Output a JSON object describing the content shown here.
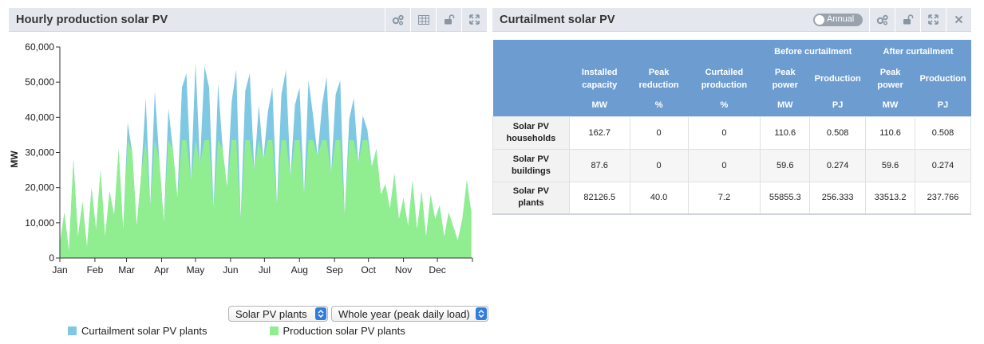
{
  "left_panel": {
    "title": "Hourly production solar PV",
    "tools": [
      "settings-icon",
      "table-icon",
      "unlock-icon",
      "expand-icon"
    ]
  },
  "right_panel": {
    "title": "Curtailment solar PV",
    "toggle_label": "Annual",
    "tools": [
      "settings-icon",
      "unlock-icon",
      "expand-icon",
      "close-icon"
    ]
  },
  "selects": {
    "source": "Solar PV plants",
    "period": "Whole year (peak daily load)"
  },
  "legend": [
    {
      "label": "Curtailment solar PV plants",
      "color": "#7ec8e3"
    },
    {
      "label": "Production solar PV plants",
      "color": "#90ee90"
    }
  ],
  "chart_data": {
    "type": "area",
    "title": "",
    "xlabel": "",
    "ylabel": "MW",
    "ylim": [
      0,
      60000
    ],
    "yticks": [
      "0",
      "10,000",
      "20,000",
      "30,000",
      "40,000",
      "50,000",
      "60,000"
    ],
    "xticks": [
      "Jan",
      "Feb",
      "Mar",
      "Apr",
      "May",
      "Jun",
      "Jul",
      "Aug",
      "Sep",
      "Oct",
      "Nov",
      "Dec"
    ],
    "cap": 33513,
    "colors": {
      "curtailment": "#7ec8e3",
      "production": "#90ee90"
    },
    "series": [
      {
        "name": "Production solar PV plants",
        "x": [
          0,
          4,
          8,
          12,
          16,
          20,
          24,
          28,
          32,
          36,
          40,
          44,
          48,
          52,
          56,
          60,
          64,
          68,
          72,
          76,
          80,
          84,
          88,
          92,
          96,
          100,
          104,
          108,
          112,
          116,
          120,
          124,
          128,
          132,
          136,
          140,
          144,
          148,
          152,
          156,
          160,
          164,
          168,
          172,
          176,
          180,
          184,
          188,
          192,
          196,
          200,
          204,
          208,
          212,
          216,
          220,
          224,
          228,
          232,
          236,
          240,
          244,
          248,
          252,
          256,
          260,
          264,
          268,
          272,
          276,
          280,
          284,
          288,
          292,
          296,
          300,
          304,
          308,
          312,
          316,
          320,
          324,
          328,
          332,
          336,
          340,
          344,
          348,
          352,
          356,
          360,
          364
        ],
        "values": [
          4000,
          13000,
          2000,
          28000,
          6000,
          16000,
          3000,
          20000,
          8000,
          25000,
          6000,
          19000,
          12000,
          31000,
          8000,
          33513,
          30000,
          9000,
          24000,
          33513,
          15000,
          33513,
          28000,
          10000,
          33513,
          31000,
          17000,
          33513,
          33513,
          22000,
          33513,
          27000,
          33513,
          33513,
          14000,
          33513,
          31000,
          20000,
          33513,
          33513,
          11000,
          33513,
          33513,
          25000,
          33513,
          28000,
          33513,
          33513,
          15000,
          33513,
          33513,
          23000,
          33513,
          33513,
          18000,
          33513,
          33513,
          29000,
          33513,
          33513,
          24000,
          33513,
          33513,
          12000,
          33513,
          33513,
          27000,
          33513,
          33513,
          26000,
          31000,
          18000,
          21000,
          14000,
          24000,
          11000,
          17000,
          9000,
          22000,
          8000,
          19000,
          6000,
          18000,
          11000,
          15000,
          6000,
          13000,
          9000,
          5000,
          11000,
          22000,
          13000
        ]
      },
      {
        "name": "Curtailment solar PV plants",
        "x": [
          0,
          4,
          8,
          12,
          16,
          20,
          24,
          28,
          32,
          36,
          40,
          44,
          48,
          52,
          56,
          60,
          64,
          68,
          72,
          76,
          80,
          84,
          88,
          92,
          96,
          100,
          104,
          108,
          112,
          116,
          120,
          124,
          128,
          132,
          136,
          140,
          144,
          148,
          152,
          156,
          160,
          164,
          168,
          172,
          176,
          180,
          184,
          188,
          192,
          196,
          200,
          204,
          208,
          212,
          216,
          220,
          224,
          228,
          232,
          236,
          240,
          244,
          248,
          252,
          256,
          260,
          264,
          268,
          272,
          276,
          280,
          284,
          288,
          292,
          296,
          300,
          304,
          308,
          312,
          316,
          320,
          324,
          328,
          332,
          336,
          340,
          344,
          348,
          352,
          356,
          360,
          364
        ],
        "values": [
          0,
          0,
          0,
          0,
          0,
          0,
          0,
          0,
          0,
          0,
          0,
          0,
          0,
          0,
          0,
          5000,
          0,
          0,
          0,
          12000,
          0,
          14000,
          0,
          0,
          9000,
          0,
          0,
          15000,
          19000,
          0,
          22000,
          0,
          21000,
          15000,
          0,
          16000,
          0,
          0,
          11000,
          20000,
          0,
          14000,
          19000,
          0,
          10000,
          0,
          8000,
          15000,
          0,
          13000,
          20000,
          0,
          10000,
          15000,
          0,
          17000,
          7000,
          0,
          10000,
          18000,
          0,
          13000,
          17000,
          0,
          6000,
          12000,
          0,
          7000,
          3000,
          0,
          0,
          0,
          0,
          0,
          0,
          0,
          0,
          0,
          0,
          0,
          0,
          0,
          0,
          0,
          0,
          0,
          0,
          0,
          0,
          0,
          0,
          0
        ]
      }
    ]
  },
  "table": {
    "group_headers": {
      "before": "Before curtailment",
      "after": "After curtailment"
    },
    "columns": [
      {
        "label_1": "Installed",
        "label_2": "capacity",
        "unit": "MW"
      },
      {
        "label_1": "Peak",
        "label_2": "reduction",
        "unit": "%"
      },
      {
        "label_1": "Curtailed",
        "label_2": "production",
        "unit": "%"
      },
      {
        "label_1": "Peak",
        "label_2": "power",
        "unit": "MW"
      },
      {
        "label_1": "Production",
        "label_2": "",
        "unit": "PJ"
      },
      {
        "label_1": "Peak",
        "label_2": "power",
        "unit": "MW"
      },
      {
        "label_1": "Production",
        "label_2": "",
        "unit": "PJ"
      }
    ],
    "rows": [
      {
        "name_1": "Solar PV",
        "name_2": "households",
        "cells": [
          "162.7",
          "0",
          "0",
          "110.6",
          "0.508",
          "110.6",
          "0.508"
        ]
      },
      {
        "name_1": "Solar PV",
        "name_2": "buildings",
        "cells": [
          "87.6",
          "0",
          "0",
          "59.6",
          "0.274",
          "59.6",
          "0.274"
        ]
      },
      {
        "name_1": "Solar PV",
        "name_2": "plants",
        "cells": [
          "82126.5",
          "40.0",
          "7.2",
          "55855.3",
          "256.333",
          "33513.2",
          "237.766"
        ]
      }
    ]
  }
}
